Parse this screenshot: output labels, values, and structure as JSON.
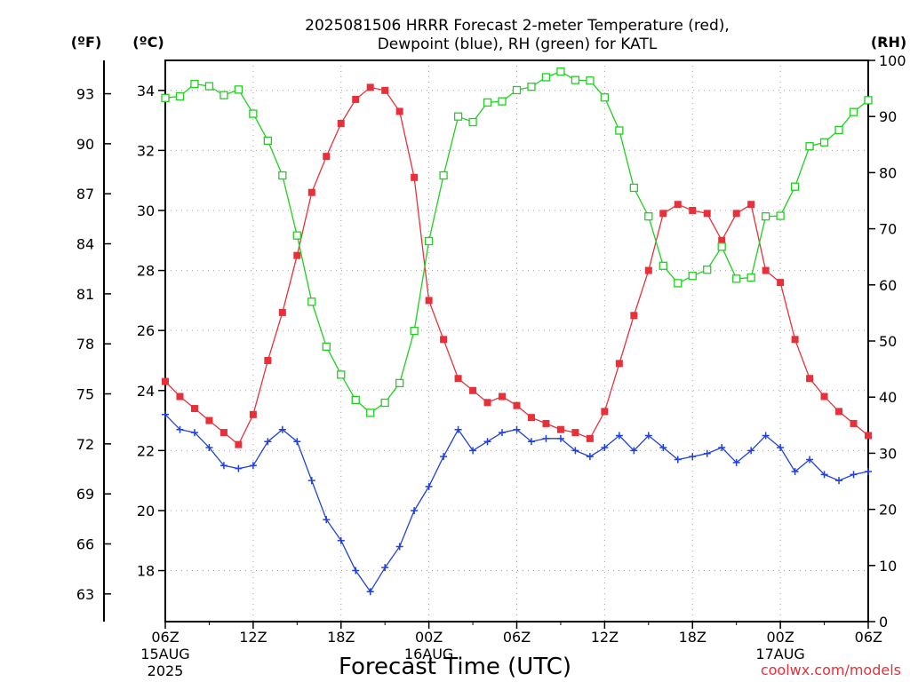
{
  "title": {
    "line1": "2025081506 HRRR Forecast 2-meter Temperature (red),",
    "line2": "Dewpoint (blue), RH (green) for KATL"
  },
  "unit_labels": {
    "f": "(ºF)",
    "c": "(ºC)",
    "rh": "(RH)"
  },
  "xlabel": "Forecast Time (UTC)",
  "credit": "coolwx.com/models",
  "chart_data": {
    "type": "line",
    "title": "2025081506 HRRR Forecast 2-meter Temperature (red), Dewpoint (blue), RH (green) for KATL",
    "xlabel": "Forecast Time (UTC)",
    "x_start": "2025-08-15 06Z",
    "x_step_hours": 1,
    "x_ticks": [
      {
        "hour": 0,
        "label": "06Z",
        "date": "15AUG",
        "year": "2025"
      },
      {
        "hour": 6,
        "label": "12Z"
      },
      {
        "hour": 12,
        "label": "18Z"
      },
      {
        "hour": 18,
        "label": "00Z",
        "date": "16AUG"
      },
      {
        "hour": 24,
        "label": "06Z"
      },
      {
        "hour": 30,
        "label": "12Z"
      },
      {
        "hour": 36,
        "label": "18Z"
      },
      {
        "hour": 42,
        "label": "00Z",
        "date": "17AUG"
      },
      {
        "hour": 48,
        "label": "06Z"
      }
    ],
    "xlim": [
      0,
      48
    ],
    "y_celsius": {
      "lim": [
        16.3,
        35.0
      ],
      "ticks": [
        18,
        20,
        22,
        24,
        26,
        28,
        30,
        32,
        34
      ]
    },
    "y_fahrenheit": {
      "ticks": [
        63,
        66,
        69,
        72,
        75,
        78,
        81,
        84,
        87,
        90,
        93
      ]
    },
    "y_rh": {
      "lim": [
        0,
        100
      ],
      "ticks": [
        0,
        10,
        20,
        30,
        40,
        50,
        60,
        70,
        80,
        90,
        100
      ]
    },
    "grid": true,
    "series": [
      {
        "name": "Temperature",
        "color": "#e8303a",
        "axis": "celsius",
        "marker": "filled-square",
        "values": [
          24.3,
          23.8,
          23.4,
          23.0,
          22.6,
          22.2,
          23.2,
          25.0,
          26.6,
          28.5,
          30.6,
          31.8,
          32.9,
          33.7,
          34.1,
          34.0,
          33.3,
          31.1,
          27.0,
          25.7,
          24.4,
          24.0,
          23.6,
          23.8,
          23.5,
          23.1,
          22.9,
          22.7,
          22.6,
          22.4,
          23.3,
          24.9,
          26.5,
          28.0,
          29.9,
          30.2,
          30.0,
          29.9,
          29.0,
          29.9,
          30.2,
          28.0,
          27.6,
          25.7,
          24.4,
          23.8,
          23.3,
          22.9,
          22.5
        ]
      },
      {
        "name": "Dewpoint",
        "color": "#2040e0",
        "axis": "celsius",
        "marker": "plus",
        "values": [
          23.2,
          22.7,
          22.6,
          22.1,
          21.5,
          21.4,
          21.5,
          22.3,
          22.7,
          22.3,
          21.0,
          19.7,
          19.0,
          18.0,
          17.3,
          18.1,
          18.8,
          20.0,
          20.8,
          21.8,
          22.7,
          22.0,
          22.3,
          22.6,
          22.7,
          22.3,
          22.4,
          22.4,
          22.0,
          21.8,
          22.1,
          22.5,
          22.0,
          22.5,
          22.1,
          21.7,
          21.8,
          21.9,
          22.1,
          21.6,
          22.0,
          22.5,
          22.1,
          21.3,
          21.7,
          21.2,
          21.0,
          21.2,
          21.3
        ]
      },
      {
        "name": "RH",
        "color": "#20d020",
        "axis": "rh",
        "marker": "open-square",
        "values": [
          93.3,
          93.6,
          95.8,
          95.4,
          93.8,
          94.8,
          90.5,
          85.7,
          79.5,
          68.8,
          57.0,
          49.0,
          44.0,
          39.5,
          37.2,
          39.0,
          42.5,
          51.8,
          67.8,
          79.5,
          90.0,
          89.0,
          92.5,
          92.7,
          94.7,
          95.3,
          97.0,
          98.0,
          96.5,
          96.4,
          93.4,
          87.5,
          77.3,
          72.2,
          63.4,
          60.3,
          61.6,
          62.7,
          66.8,
          61.1,
          61.3,
          72.2,
          72.3,
          77.5,
          84.7,
          85.4,
          87.6,
          90.8,
          92.9
        ]
      }
    ]
  }
}
